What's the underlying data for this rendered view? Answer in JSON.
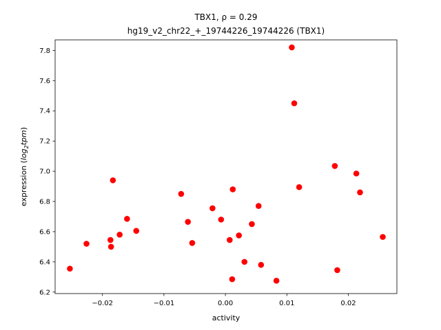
{
  "chart_data": {
    "type": "scatter",
    "title": "TBX1, ρ = 0.29",
    "subtitle": "hg19_v2_chr22_+_19744226_19744226 (TBX1)",
    "xlabel": "activity",
    "ylabel_prefix": "expression (",
    "ylabel_log": "log",
    "ylabel_sub": "2",
    "ylabel_tpm": "tpm",
    "ylabel_suffix": ")",
    "xlim": [
      -0.0277,
      0.0279
    ],
    "ylim": [
      6.19,
      7.87
    ],
    "x_ticks": [
      -0.02,
      -0.01,
      0.0,
      0.01,
      0.02
    ],
    "x_tick_labels": [
      "−0.02",
      "−0.01",
      "0.00",
      "0.01",
      "0.02"
    ],
    "y_ticks": [
      6.2,
      6.4,
      6.6,
      6.8,
      7.0,
      7.2,
      7.4,
      7.6,
      7.8
    ],
    "y_tick_labels": [
      "6.2",
      "6.4",
      "6.6",
      "6.8",
      "7.0",
      "7.2",
      "7.4",
      "7.6",
      "7.8"
    ],
    "grid": false,
    "marker_color": "#ff0000",
    "points": [
      {
        "x": -0.0253,
        "y": 6.355
      },
      {
        "x": -0.0226,
        "y": 6.52
      },
      {
        "x": -0.0187,
        "y": 6.545
      },
      {
        "x": -0.0186,
        "y": 6.5
      },
      {
        "x": -0.0183,
        "y": 6.94
      },
      {
        "x": -0.0172,
        "y": 6.58
      },
      {
        "x": -0.016,
        "y": 6.685
      },
      {
        "x": -0.0145,
        "y": 6.605
      },
      {
        "x": -0.0072,
        "y": 6.85
      },
      {
        "x": -0.0061,
        "y": 6.665
      },
      {
        "x": -0.0054,
        "y": 6.525
      },
      {
        "x": -0.0021,
        "y": 6.755
      },
      {
        "x": -0.0007,
        "y": 6.68
      },
      {
        "x": 0.0007,
        "y": 6.545
      },
      {
        "x": 0.0011,
        "y": 6.285
      },
      {
        "x": 0.0012,
        "y": 6.88
      },
      {
        "x": 0.0022,
        "y": 6.575
      },
      {
        "x": 0.0031,
        "y": 6.4
      },
      {
        "x": 0.0043,
        "y": 6.65
      },
      {
        "x": 0.0054,
        "y": 6.77
      },
      {
        "x": 0.0058,
        "y": 6.38
      },
      {
        "x": 0.0083,
        "y": 6.275
      },
      {
        "x": 0.0108,
        "y": 7.82
      },
      {
        "x": 0.0112,
        "y": 7.45
      },
      {
        "x": 0.012,
        "y": 6.895
      },
      {
        "x": 0.0178,
        "y": 7.035
      },
      {
        "x": 0.0182,
        "y": 6.345
      },
      {
        "x": 0.0213,
        "y": 6.985
      },
      {
        "x": 0.0219,
        "y": 6.86
      },
      {
        "x": 0.0256,
        "y": 6.565
      }
    ]
  }
}
